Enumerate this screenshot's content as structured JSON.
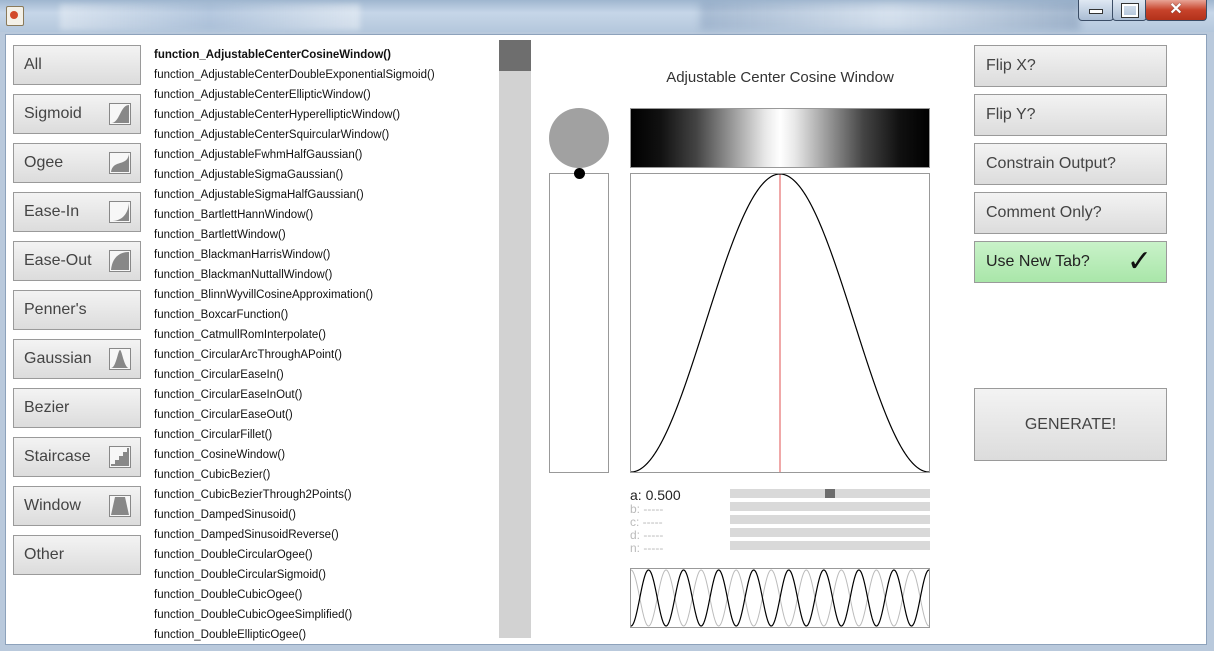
{
  "window": {
    "controls": [
      "minimize",
      "maximize",
      "close"
    ],
    "close_glyph": "✕"
  },
  "categories": [
    {
      "label": "All",
      "icon": null
    },
    {
      "label": "Sigmoid",
      "icon": "sigmoid-icon"
    },
    {
      "label": "Ogee",
      "icon": "ogee-icon"
    },
    {
      "label": "Ease-In",
      "icon": "ease-in-icon"
    },
    {
      "label": "Ease-Out",
      "icon": "ease-out-icon"
    },
    {
      "label": "Penner's",
      "icon": null
    },
    {
      "label": "Gaussian",
      "icon": "gaussian-icon"
    },
    {
      "label": "Bezier",
      "icon": null
    },
    {
      "label": "Staircase",
      "icon": "staircase-icon"
    },
    {
      "label": "Window",
      "icon": "window-icon"
    },
    {
      "label": "Other",
      "icon": null
    }
  ],
  "functions": {
    "selected_index": 0,
    "scroll_position": 0,
    "items": [
      "function_AdjustableCenterCosineWindow()",
      "function_AdjustableCenterDoubleExponentialSigmoid()",
      "function_AdjustableCenterEllipticWindow()",
      "function_AdjustableCenterHyperellipticWindow()",
      "function_AdjustableCenterSquircularWindow()",
      "function_AdjustableFwhmHalfGaussian()",
      "function_AdjustableSigmaGaussian()",
      "function_AdjustableSigmaHalfGaussian()",
      "function_BartlettHannWindow()",
      "function_BartlettWindow()",
      "function_BlackmanHarrisWindow()",
      "function_BlackmanNuttallWindow()",
      "function_BlinnWyvillCosineApproximation()",
      "function_BoxcarFunction()",
      "function_CatmullRomInterpolate()",
      "function_CircularArcThroughAPoint()",
      "function_CircularEaseIn()",
      "function_CircularEaseInOut()",
      "function_CircularEaseOut()",
      "function_CircularFillet()",
      "function_CosineWindow()",
      "function_CubicBezier()",
      "function_CubicBezierThrough2Points()",
      "function_DampedSinusoid()",
      "function_DampedSinusoidReverse()",
      "function_DoubleCircularOgee()",
      "function_DoubleCircularSigmoid()",
      "function_DoubleCubicOgee()",
      "function_DoubleCubicOgeeSimplified()",
      "function_DoubleEllipticOgee()"
    ]
  },
  "graph": {
    "title": "Adjustable Center Cosine Window",
    "center_x": 0.5,
    "output_value": 1.0
  },
  "params": [
    {
      "label": "a: 0.500",
      "value": 0.5,
      "active": true
    },
    {
      "label": "b: -----",
      "value": null,
      "active": false
    },
    {
      "label": "c: -----",
      "value": null,
      "active": false
    },
    {
      "label": "d: -----",
      "value": null,
      "active": false
    },
    {
      "label": "n: -----",
      "value": null,
      "active": false
    }
  ],
  "options": [
    {
      "label": "Flip X?",
      "checked": false
    },
    {
      "label": "Flip Y?",
      "checked": false
    },
    {
      "label": "Constrain Output?",
      "checked": false
    },
    {
      "label": "Comment Only?",
      "checked": false
    },
    {
      "label": "Use New Tab?",
      "checked": true
    }
  ],
  "check_glyph": "✓",
  "generate_label": "GENERATE!",
  "colors": {
    "accent_green": "#b8ecb8",
    "center_line": "#e05050",
    "curve": "#000000",
    "ghost_curve": "#bbbbbb"
  }
}
